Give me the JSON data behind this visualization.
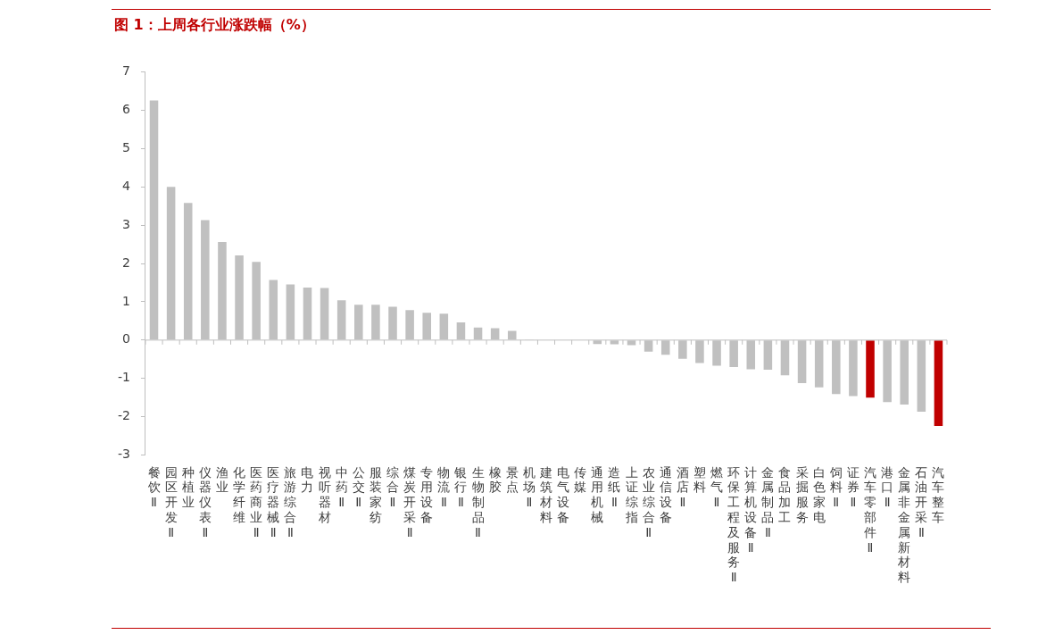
{
  "chart_data": {
    "type": "bar",
    "title": "图 1：上周各行业涨跌幅（%）",
    "categories": [
      "餐饮Ⅱ",
      "园区开发Ⅱ",
      "种植业",
      "仪器仪表Ⅱ",
      "渔业",
      "化学纤维",
      "医药商业Ⅱ",
      "医疗器械Ⅱ",
      "旅游综合Ⅱ",
      "电力",
      "视听器材",
      "中药Ⅱ",
      "公交Ⅱ",
      "服装家纺",
      "综合Ⅱ",
      "煤炭开采Ⅱ",
      "专用设备",
      "物流Ⅱ",
      "银行Ⅱ",
      "生物制品Ⅱ",
      "橡胶",
      "景点",
      "机场Ⅱ",
      "建筑材料",
      "电气设备",
      "传媒",
      "通用机械",
      "造纸Ⅱ",
      "上证综指",
      "农业综合Ⅱ",
      "通信设备",
      "酒店Ⅱ",
      "塑料",
      "燃气Ⅱ",
      "环保工程及服务Ⅱ",
      "计算机设备Ⅱ",
      "金属制品Ⅱ",
      "食品加工",
      "采掘服务",
      "白色家电",
      "饲料Ⅱ",
      "证券Ⅱ",
      "汽车零部件Ⅱ",
      "港口Ⅱ",
      "金属非金属新材料",
      "石油开采Ⅱ",
      "汽车整车"
    ],
    "values": [
      6.25,
      4.0,
      3.58,
      3.13,
      2.56,
      2.21,
      2.04,
      1.57,
      1.45,
      1.37,
      1.36,
      1.04,
      0.92,
      0.92,
      0.87,
      0.78,
      0.71,
      0.69,
      0.46,
      0.33,
      0.31,
      0.24,
      0.01,
      0,
      0,
      0,
      -0.1,
      -0.11,
      -0.13,
      -0.3,
      -0.38,
      -0.49,
      -0.6,
      -0.67,
      -0.7,
      -0.76,
      -0.77,
      -0.92,
      -1.12,
      -1.23,
      -1.41,
      -1.46,
      -1.5,
      -1.62,
      -1.68,
      -1.87,
      -2.24
    ],
    "colors": [
      "#c0c0c0",
      "#c0c0c0",
      "#c0c0c0",
      "#c0c0c0",
      "#c0c0c0",
      "#c0c0c0",
      "#c0c0c0",
      "#c0c0c0",
      "#c0c0c0",
      "#c0c0c0",
      "#c0c0c0",
      "#c0c0c0",
      "#c0c0c0",
      "#c0c0c0",
      "#c0c0c0",
      "#c0c0c0",
      "#c0c0c0",
      "#c0c0c0",
      "#c0c0c0",
      "#c0c0c0",
      "#c0c0c0",
      "#c0c0c0",
      "#c0c0c0",
      "#c0c0c0",
      "#c0c0c0",
      "#c0c0c0",
      "#c0c0c0",
      "#c0c0c0",
      "#c0c0c0",
      "#c0c0c0",
      "#c0c0c0",
      "#c0c0c0",
      "#c0c0c0",
      "#c0c0c0",
      "#c0c0c0",
      "#c0c0c0",
      "#c0c0c0",
      "#c0c0c0",
      "#c0c0c0",
      "#c0c0c0",
      "#c0c0c0",
      "#c0c0c0",
      "#c00000",
      "#c0c0c0",
      "#c0c0c0",
      "#c0c0c0",
      "#c00000"
    ],
    "ylim": [
      -3,
      7
    ],
    "yticks": [
      -3,
      -2,
      -1,
      0,
      1,
      2,
      3,
      4,
      5,
      6,
      7
    ]
  }
}
